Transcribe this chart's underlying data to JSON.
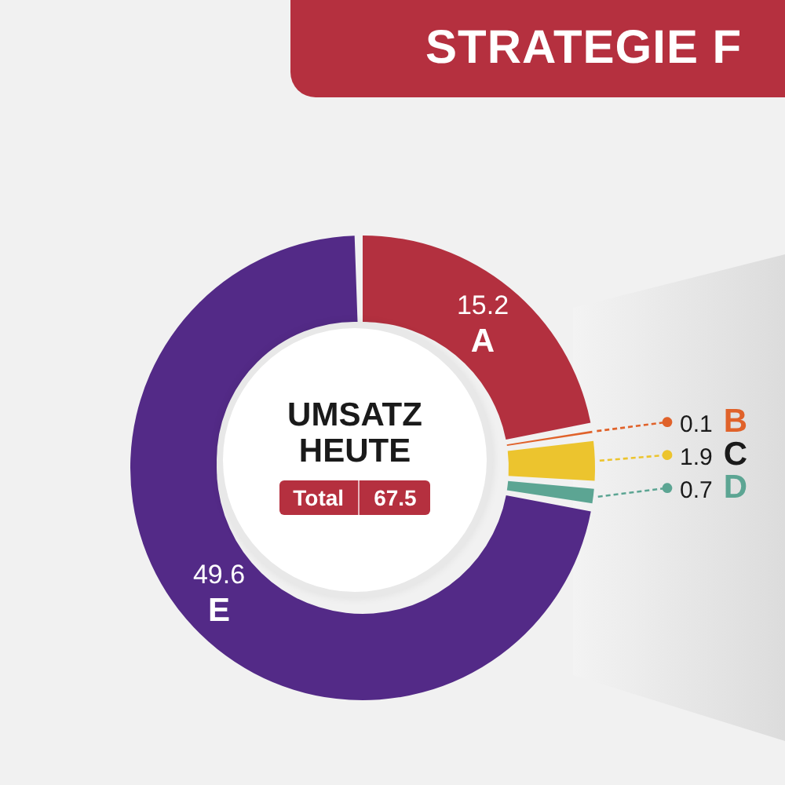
{
  "chart_data": {
    "type": "donut",
    "title": "STRATEGIE F",
    "subtitle": "UMSATZ HEUTE",
    "categories": [
      "A",
      "B",
      "C",
      "D",
      "E"
    ],
    "values": [
      15.2,
      0.1,
      1.9,
      0.7,
      49.6
    ],
    "colors": [
      "#b3303f",
      "#e0622a",
      "#ecc42e",
      "#5ca593",
      "#532a87"
    ],
    "data_labels": true,
    "annotations": [
      "Total",
      "67.5"
    ]
  }
}
